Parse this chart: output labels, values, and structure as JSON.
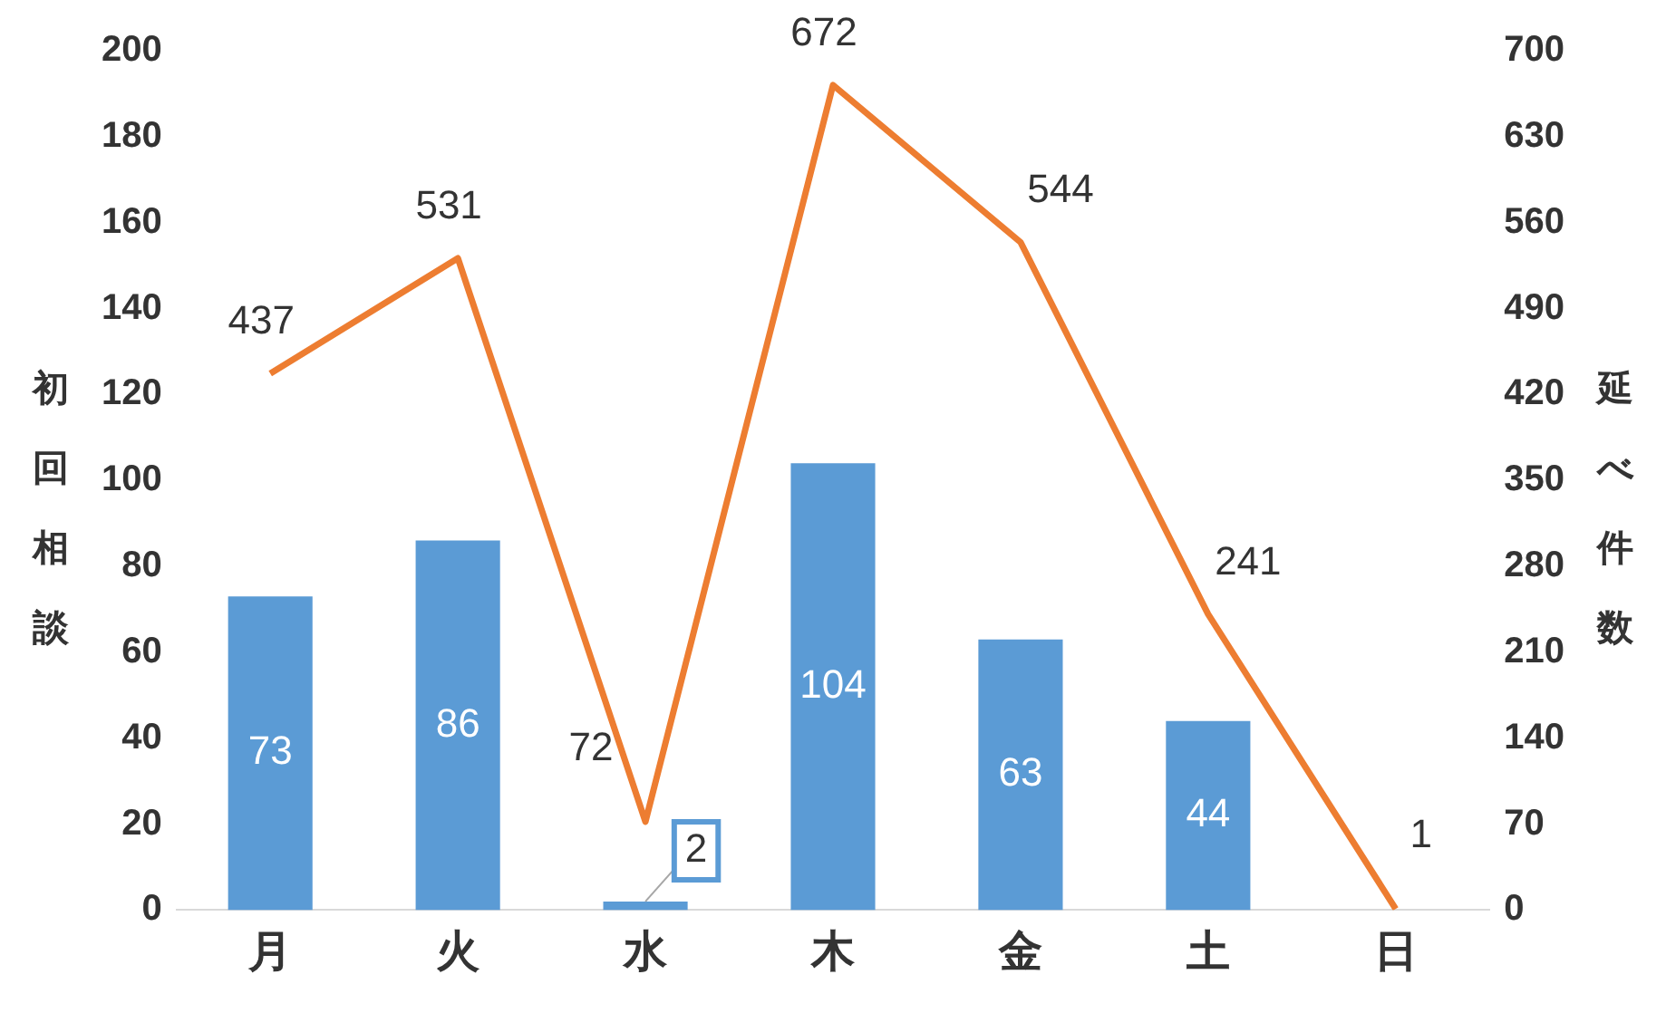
{
  "chart_data": {
    "type": "bar",
    "categories": [
      "月",
      "火",
      "水",
      "木",
      "金",
      "土",
      "日"
    ],
    "ylabel": "初回相談",
    "y2label": "延べ件数",
    "series": [
      {
        "color": "#5b9bd5",
        "values": [
          73,
          86,
          2,
          104,
          63,
          44,
          null
        ]
      },
      {
        "type": "line",
        "axis": "y2",
        "color": "#ed7d31",
        "values": [
          437,
          531,
          72,
          672,
          544,
          241,
          1
        ]
      }
    ],
    "ylim": [
      0,
      200
    ],
    "yticks": [
      0,
      20,
      40,
      60,
      80,
      100,
      120,
      140,
      160,
      180,
      200
    ],
    "y2lim": [
      0,
      700
    ],
    "y2ticks": [
      0,
      70,
      140,
      210,
      280,
      350,
      420,
      490,
      560,
      630,
      700
    ],
    "data_labels": true,
    "grid": false,
    "legend": false,
    "marker": "none"
  }
}
